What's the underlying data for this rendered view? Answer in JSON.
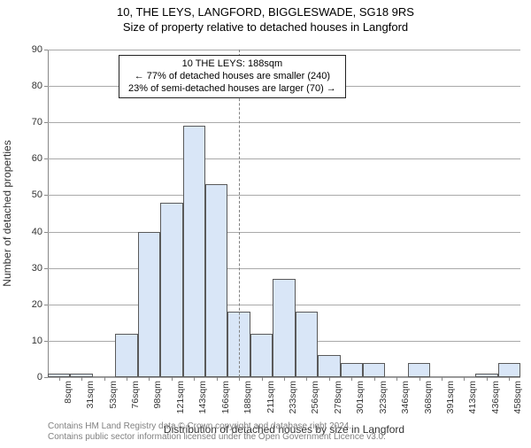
{
  "title": "10, THE LEYS, LANGFORD, BIGGLESWADE, SG18 9RS",
  "subtitle": "Size of property relative to detached houses in Langford",
  "chart": {
    "type": "histogram",
    "y_axis": {
      "label": "Number of detached properties",
      "ticks": [
        0,
        10,
        20,
        30,
        40,
        50,
        60,
        70,
        80,
        90
      ],
      "ylim": [
        0,
        90
      ],
      "grid_color": "#a9a9a9",
      "label_fontsize": 12,
      "tick_fontsize": 11
    },
    "x_axis": {
      "label": "Distribution of detached houses by size in Langford",
      "categories": [
        "8sqm",
        "31sqm",
        "53sqm",
        "76sqm",
        "98sqm",
        "121sqm",
        "143sqm",
        "166sqm",
        "188sqm",
        "211sqm",
        "233sqm",
        "256sqm",
        "278sqm",
        "301sqm",
        "323sqm",
        "346sqm",
        "368sqm",
        "391sqm",
        "413sqm",
        "436sqm",
        "458sqm"
      ],
      "label_fontsize": 12,
      "tick_fontsize": 10.5
    },
    "bars": {
      "values": [
        1,
        1,
        0,
        12,
        40,
        48,
        69,
        53,
        18,
        12,
        27,
        18,
        6,
        4,
        4,
        0,
        4,
        0,
        0,
        1,
        4
      ],
      "fill_color": "#d9e6f7",
      "stroke_color": "#5a5a5a",
      "bar_width_frac": 1.0
    },
    "reference": {
      "bin_index": 8,
      "line_color": "#808080",
      "line_dash": true
    },
    "info_box": {
      "line1": "10 THE LEYS: 188sqm",
      "line2": "← 77% of detached houses are smaller (240)",
      "line3": "23% of semi-detached houses are larger (70) →",
      "border_color": "#222222",
      "background_color": "#ffffff",
      "fontsize": 11
    },
    "background_color": "#ffffff",
    "axis_color": "#888888"
  },
  "footer": {
    "line1": "Contains HM Land Registry data © Crown copyright and database right 2024.",
    "line2": "Contains public sector information licensed under the Open Government Licence v3.0.",
    "color": "#818181"
  }
}
